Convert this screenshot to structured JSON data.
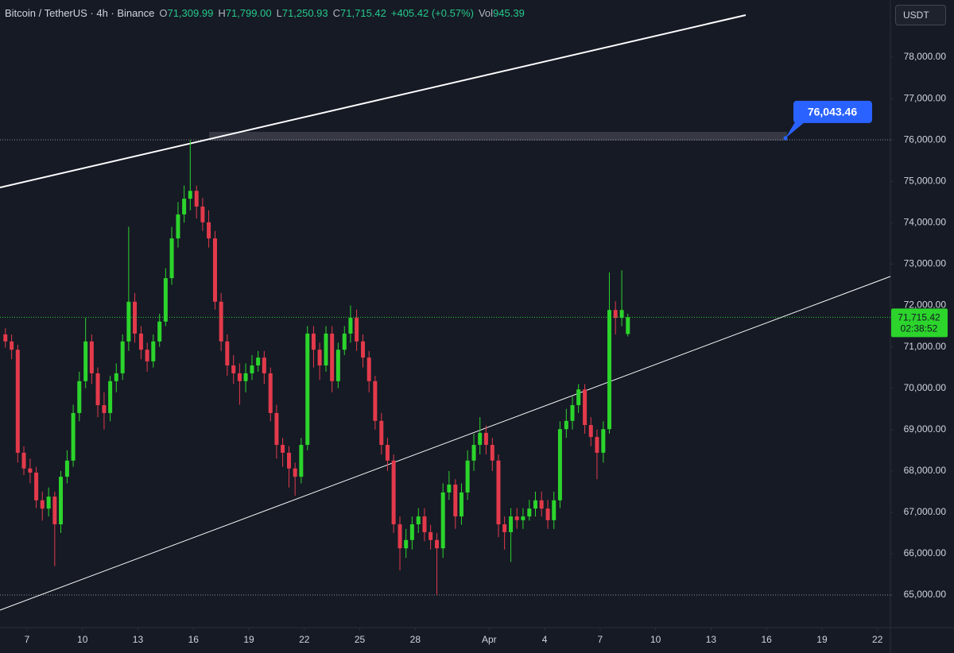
{
  "legend": {
    "symbol": "Bitcoin / TetherUS · 4h · Binance",
    "items": [
      {
        "key": "O",
        "value": "71,309.99"
      },
      {
        "key": "H",
        "value": "71,799.00"
      },
      {
        "key": "L",
        "value": "71,250.93"
      },
      {
        "key": "C",
        "value": "71,715.42"
      }
    ],
    "change": "+405.42 (+0.57%)",
    "volume": {
      "key": "Vol",
      "value": "945.39"
    }
  },
  "currency": "USDT",
  "chart_data": {
    "type": "candlestick",
    "up_color": "#2cd42c",
    "down_color": "#e33a4b",
    "xlim": [
      5.54,
      53.7
    ],
    "ylim": [
      64214,
      79383
    ],
    "xticks": [
      7,
      10,
      13,
      16,
      19,
      22,
      25,
      28,
      {
        "value": 32,
        "label": "Apr"
      },
      {
        "value": 35,
        "label": "4"
      },
      {
        "value": 38,
        "label": "7"
      },
      {
        "value": 41,
        "label": "10"
      },
      {
        "value": 44,
        "label": "13"
      },
      {
        "value": 47,
        "label": "16"
      },
      {
        "value": 50,
        "label": "19"
      },
      {
        "value": 53,
        "label": "22"
      }
    ],
    "yticks": [
      {
        "value": 65000,
        "label": "65,000.00"
      },
      {
        "value": 66000,
        "label": "66,000.00"
      },
      {
        "value": 67000,
        "label": "67,000.00"
      },
      {
        "value": 68000,
        "label": "68,000.00"
      },
      {
        "value": 69000,
        "label": "69,000.00"
      },
      {
        "value": 70000,
        "label": "70,000.00"
      },
      {
        "value": 71000,
        "label": "71,000.00"
      },
      {
        "value": 72000,
        "label": "72,000.00"
      },
      {
        "value": 73000,
        "label": "73,000.00"
      },
      {
        "value": 74000,
        "label": "74,000.00"
      },
      {
        "value": 75000,
        "label": "75,000.00"
      },
      {
        "value": 76000,
        "label": "76,000.00"
      },
      {
        "value": 77000,
        "label": "77,000.00"
      },
      {
        "value": 78000,
        "label": "78,000.00"
      }
    ],
    "last_price": {
      "value": 71715.42,
      "label": "71,715.42"
    },
    "countdown": "02:38:52",
    "marker": {
      "value": 76043.46,
      "label": "76,043.46"
    },
    "x": [
      5.83,
      6.17,
      6.5,
      6.83,
      7.17,
      7.5,
      7.83,
      8.17,
      8.5,
      8.83,
      9.17,
      9.5,
      9.83,
      10.17,
      10.5,
      10.83,
      11.17,
      11.5,
      11.83,
      12.17,
      12.5,
      12.83,
      13.17,
      13.5,
      13.83,
      14.17,
      14.5,
      14.83,
      15.17,
      15.5,
      15.83,
      16.17,
      16.5,
      16.83,
      17.17,
      17.5,
      17.83,
      18.17,
      18.5,
      18.83,
      19.17,
      19.5,
      19.83,
      20.17,
      20.5,
      20.83,
      21.17,
      21.5,
      21.83,
      22.17,
      22.5,
      22.83,
      23.17,
      23.5,
      23.83,
      24.17,
      24.5,
      24.83,
      25.17,
      25.5,
      25.83,
      26.17,
      26.5,
      26.83,
      27.17,
      27.5,
      27.83,
      28.17,
      28.5,
      28.83,
      29.17,
      29.5,
      29.83,
      30.17,
      30.5,
      30.83,
      31.17,
      31.5,
      31.83,
      32.17,
      32.5,
      32.83,
      33.17,
      33.5,
      33.83,
      34.17,
      34.5,
      34.83,
      35.17,
      35.5,
      35.83,
      36.17,
      36.5,
      36.83,
      37.17,
      37.5,
      37.83,
      38.17,
      38.5,
      38.83,
      39.17,
      39.5
    ],
    "open": [
      71300,
      71130,
      70930,
      68440,
      68060,
      67960,
      67290,
      67090,
      67380,
      66710,
      67860,
      68250,
      69400,
      70170,
      71130,
      70360,
      69590,
      69400,
      70170,
      70360,
      71130,
      72090,
      71320,
      70930,
      70650,
      71130,
      71610,
      72660,
      73620,
      74200,
      74580,
      74770,
      74390,
      74010,
      73620,
      72090,
      71130,
      70550,
      70360,
      70170,
      70360,
      70550,
      70740,
      70360,
      69400,
      68630,
      68440,
      68060,
      67860,
      68630,
      71320,
      70930,
      70550,
      71320,
      70170,
      70930,
      71320,
      71700,
      71130,
      70740,
      70170,
      69210,
      68630,
      68250,
      66710,
      66130,
      66330,
      66710,
      66900,
      66520,
      66330,
      66130,
      67480,
      67670,
      66900,
      67480,
      68250,
      68630,
      68920,
      68630,
      68250,
      66710,
      66520,
      66900,
      66810,
      66900,
      67090,
      67290,
      67090,
      66810,
      67290,
      69010,
      69210,
      69590,
      69970,
      69110,
      68820,
      68440,
      69010,
      71890,
      71700,
      71309.99
    ],
    "high": [
      71450,
      71300,
      71050,
      68600,
      68300,
      68100,
      67500,
      67600,
      67500,
      68000,
      68500,
      69600,
      70400,
      71700,
      71300,
      70500,
      69900,
      70300,
      70600,
      71300,
      73900,
      72300,
      71500,
      71100,
      71300,
      71800,
      72900,
      73900,
      74500,
      74900,
      76000,
      74900,
      74600,
      74300,
      73800,
      72300,
      71300,
      70800,
      70600,
      70600,
      70800,
      70900,
      70900,
      70500,
      69600,
      68800,
      68600,
      68200,
      68800,
      71500,
      71500,
      71100,
      71500,
      71500,
      71100,
      71500,
      72000,
      71900,
      71300,
      70900,
      70300,
      69400,
      68800,
      68400,
      66900,
      66600,
      66900,
      67100,
      67100,
      66700,
      66500,
      67700,
      68000,
      67800,
      67700,
      68500,
      68900,
      69300,
      69100,
      68800,
      68400,
      66900,
      67100,
      67100,
      67100,
      67300,
      67500,
      67500,
      67300,
      67500,
      69200,
      69500,
      69800,
      70100,
      70100,
      69300,
      69000,
      69200,
      72800,
      72100,
      72850,
      71799
    ],
    "low": [
      70980,
      70700,
      68200,
      67900,
      67700,
      67100,
      66800,
      66900,
      65700,
      66500,
      67700,
      68100,
      69200,
      70000,
      70100,
      69300,
      69000,
      69200,
      69900,
      70200,
      70900,
      71100,
      70700,
      70400,
      70500,
      71000,
      71500,
      72500,
      73400,
      74000,
      74300,
      74100,
      73800,
      73400,
      71900,
      70900,
      70300,
      70100,
      69600,
      69900,
      70200,
      70400,
      70100,
      69200,
      68300,
      68100,
      67600,
      67400,
      67700,
      68500,
      70500,
      70200,
      70400,
      69900,
      70000,
      70800,
      71100,
      70900,
      70500,
      69900,
      69000,
      68400,
      68000,
      66500,
      65600,
      65900,
      66100,
      66500,
      66300,
      66100,
      65000,
      65900,
      67300,
      66600,
      66700,
      67300,
      68000,
      68400,
      68400,
      68000,
      66400,
      66100,
      65800,
      66600,
      66600,
      66800,
      66900,
      66900,
      66600,
      66600,
      67100,
      68800,
      69000,
      69400,
      68900,
      68600,
      67800,
      68200,
      68900,
      71300,
      71500,
      71250.93
    ],
    "close": [
      71130,
      70930,
      68440,
      68060,
      67960,
      67290,
      67090,
      67380,
      66710,
      67860,
      68250,
      69400,
      70170,
      71130,
      70360,
      69590,
      69400,
      70170,
      70360,
      71130,
      72090,
      71320,
      70930,
      70650,
      71130,
      71610,
      72660,
      73620,
      74200,
      74580,
      74770,
      74390,
      74010,
      73620,
      72090,
      71130,
      70550,
      70360,
      70170,
      70360,
      70550,
      70740,
      70360,
      69400,
      68630,
      68440,
      68060,
      67860,
      68630,
      71320,
      70930,
      70550,
      71320,
      70170,
      70930,
      71320,
      71700,
      71130,
      70740,
      70170,
      69210,
      68630,
      68250,
      66710,
      66130,
      66330,
      66710,
      66900,
      66520,
      66330,
      66130,
      67480,
      67670,
      66900,
      67480,
      68250,
      68630,
      68920,
      68630,
      68250,
      66710,
      66520,
      66900,
      66810,
      66900,
      67090,
      67290,
      67090,
      66810,
      67290,
      69010,
      69210,
      69590,
      69970,
      69110,
      68820,
      68440,
      69010,
      71890,
      71700,
      71890,
      71715.42
    ]
  }
}
